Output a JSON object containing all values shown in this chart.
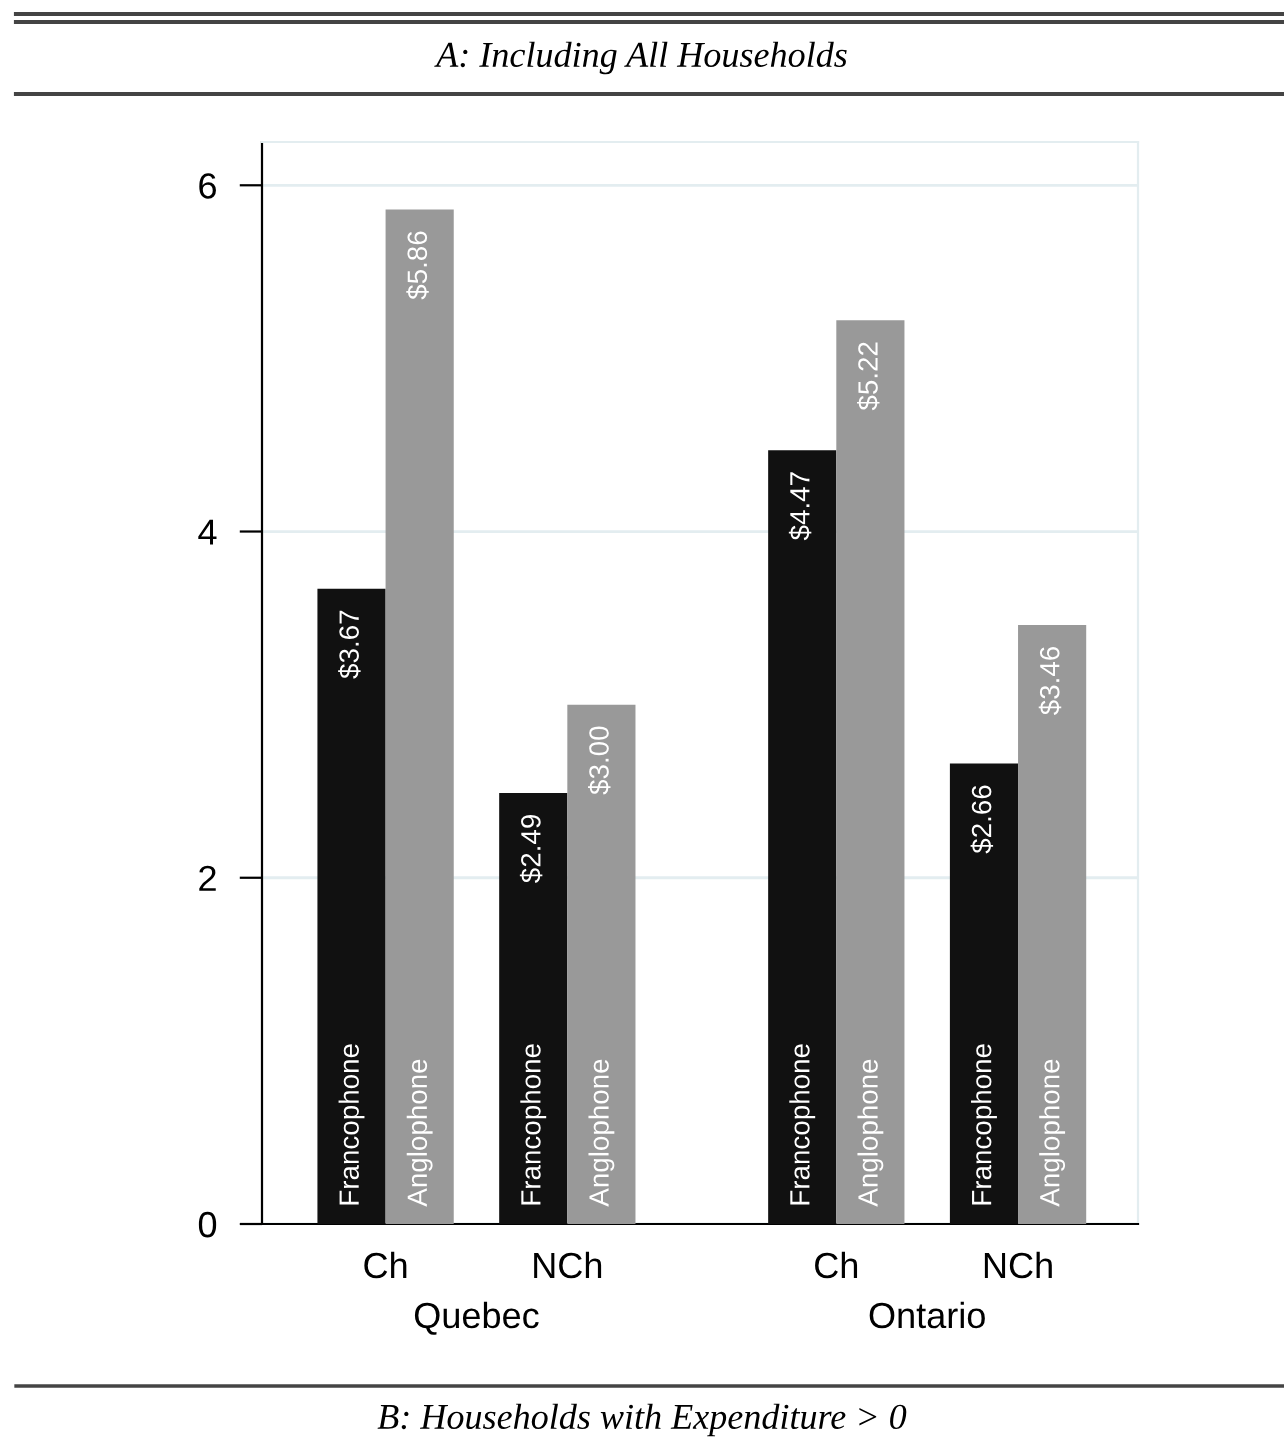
{
  "chart_data": {
    "type": "bar",
    "title": "A: Including All Households",
    "categories": [
      "Ch",
      "NCh",
      "Ch",
      "NCh"
    ],
    "series": [
      {
        "name": "Francophone",
        "color": "#111111",
        "values": [
          3.67,
          2.49,
          4.47,
          2.66
        ],
        "value_labels": [
          "$3.67",
          "$2.49",
          "$4.47",
          "$2.66"
        ]
      },
      {
        "name": "Anglophone",
        "color": "#999999",
        "values": [
          5.86,
          3.0,
          5.22,
          3.46
        ],
        "value_labels": [
          "$5.86",
          "$3.00",
          "$5.22",
          "$3.46"
        ]
      }
    ],
    "ylim": [
      0,
      6.25
    ],
    "yticks": [
      0,
      2,
      4,
      6
    ],
    "grid": "y",
    "legend": false,
    "annotations": [
      "Quebec",
      "Ontario",
      "B: Households with Expenditure > 0"
    ]
  }
}
